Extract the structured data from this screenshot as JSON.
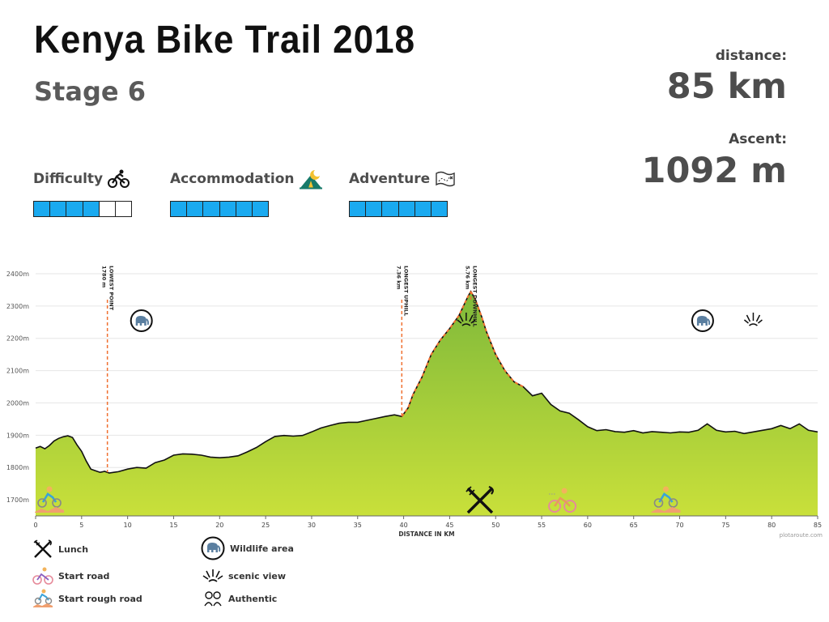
{
  "header": {
    "title": "Kenya Bike Trail 2018",
    "subtitle": "Stage 6"
  },
  "stats": {
    "distance_label": "distance:",
    "distance_value": "85 km",
    "ascent_label": "Ascent:",
    "ascent_value": "1092 m"
  },
  "ratings": [
    {
      "label": "Difficulty",
      "icon": "cyclist-icon",
      "filled": 4,
      "total": 6
    },
    {
      "label": "Accommodation",
      "icon": "tent-icon",
      "filled": 6,
      "total": 6
    },
    {
      "label": "Adventure",
      "icon": "map-icon",
      "filled": 6,
      "total": 6
    }
  ],
  "colors": {
    "rating_fill": "#1aaaf0",
    "profile_top": "#8ec63f",
    "profile_bottom": "#c6e03a",
    "marker": "#f07030"
  },
  "chart_data": {
    "type": "area",
    "xlabel": "DISTANCE IN KM",
    "ylabel": "",
    "xlim": [
      0,
      85
    ],
    "ylim": [
      1650,
      2450
    ],
    "xticks": [
      0,
      5,
      10,
      15,
      20,
      25,
      30,
      35,
      40,
      45,
      50,
      55,
      60,
      65,
      70,
      75,
      80,
      85
    ],
    "yticks": [
      1700,
      1800,
      1900,
      2000,
      2100,
      2200,
      2300,
      2400
    ],
    "ytick_suffix": "m",
    "grid": true,
    "profile": {
      "x": [
        0,
        0.5,
        1,
        1.5,
        2,
        2.5,
        3,
        3.5,
        4,
        4.5,
        5,
        5.5,
        6,
        6.5,
        7,
        7.5,
        8,
        8.5,
        9,
        10,
        11,
        12,
        13,
        14,
        15,
        16,
        17,
        18,
        19,
        20,
        21,
        22,
        23,
        24,
        25,
        26,
        27,
        28,
        29,
        30,
        31,
        32,
        33,
        34,
        35,
        36,
        37,
        38,
        39,
        39.8,
        40.5,
        41,
        42,
        43,
        44,
        45,
        46,
        46.5,
        47,
        47.3,
        47.8,
        48.5,
        49,
        50,
        51,
        52,
        53,
        54,
        55,
        56,
        57,
        58,
        59,
        60,
        61,
        62,
        63,
        64,
        65,
        66,
        67,
        68,
        69,
        70,
        71,
        72,
        73,
        74,
        75,
        76,
        77,
        78,
        79,
        80,
        81,
        82,
        83,
        84,
        85
      ],
      "y": [
        1860,
        1865,
        1858,
        1868,
        1882,
        1890,
        1895,
        1898,
        1893,
        1870,
        1850,
        1820,
        1795,
        1790,
        1785,
        1788,
        1783,
        1785,
        1787,
        1795,
        1800,
        1798,
        1815,
        1823,
        1838,
        1842,
        1841,
        1838,
        1832,
        1830,
        1832,
        1836,
        1848,
        1862,
        1880,
        1896,
        1899,
        1897,
        1899,
        1910,
        1922,
        1930,
        1937,
        1940,
        1940,
        1946,
        1952,
        1958,
        1963,
        1958,
        1985,
        2025,
        2080,
        2150,
        2195,
        2230,
        2270,
        2300,
        2330,
        2345,
        2320,
        2265,
        2220,
        2150,
        2100,
        2065,
        2050,
        2022,
        2030,
        1995,
        1975,
        1968,
        1948,
        1926,
        1914,
        1917,
        1911,
        1909,
        1914,
        1907,
        1911,
        1909,
        1907,
        1910,
        1909,
        1915,
        1935,
        1915,
        1910,
        1912,
        1905,
        1910,
        1915,
        1920,
        1930,
        1920,
        1935,
        1915,
        1910
      ]
    },
    "markers": [
      {
        "x": 7.8,
        "label": "LOWEST POINT",
        "sub": "1780 m"
      },
      {
        "x": 39.8,
        "label": "LONGEST UPHILL",
        "sub": "7.36 km"
      },
      {
        "x": 47.3,
        "label": "LONGEST DOWNHILL",
        "sub": "5.76 km"
      }
    ],
    "highlight_ranges": [
      [
        39.8,
        47.3
      ],
      [
        47.3,
        53.1
      ]
    ],
    "icons_on_chart": [
      {
        "name": "start-rough-road-icon",
        "x": 1.5
      },
      {
        "name": "elephant-icon",
        "x": 11.5
      },
      {
        "name": "scenic-view-icon",
        "x": 46.8
      },
      {
        "name": "lunch-icon",
        "x": 48.3
      },
      {
        "name": "start-road-icon",
        "x": 57.2
      },
      {
        "name": "start-rough-road-icon",
        "x": 68.5
      },
      {
        "name": "elephant-icon",
        "x": 72.5
      },
      {
        "name": "scenic-view-icon",
        "x": 78
      }
    ]
  },
  "legend": [
    {
      "icon": "lunch-icon",
      "label": "Lunch"
    },
    {
      "icon": "start-road-icon",
      "label": "Start road"
    },
    {
      "icon": "start-rough-road-icon",
      "label": "Start rough road"
    },
    {
      "icon": "elephant-icon",
      "label": "Wildlife area"
    },
    {
      "icon": "scenic-view-icon",
      "label": "scenic view"
    },
    {
      "icon": "authentic-icon",
      "label": "Authentic"
    }
  ],
  "credit": "plotaroute.com"
}
